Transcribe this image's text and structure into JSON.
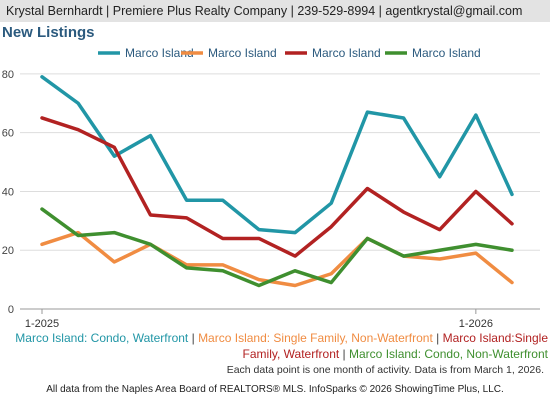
{
  "header": {
    "text": "Krystal Bernhardt | Premiere Plus Realty Company | 239-529-8994 | agentkrystal@gmail.com"
  },
  "footer": {
    "note": "Each data point is one month of activity. Data is from March 1, 2026.",
    "source": "All data from the Naples Area Board of REALTORS® MLS. InfoSparks © 2026 ShowingTime Plus, LLC."
  },
  "legend_desc": [
    {
      "text": "Marco Island: Condo, Waterfront",
      "color": "#2196a6"
    },
    {
      "text": "Marco Island: Single Family, Non-Waterfront",
      "color": "#f08c42"
    },
    {
      "text": "Marco Island:Single Family, Waterfront",
      "color": "#b22222"
    },
    {
      "text": "Marco Island: Condo, Non-Waterfront",
      "color": "#3f8f2f"
    }
  ],
  "chart_data": {
    "type": "line",
    "title": "New Listings",
    "x": [
      "2025-01",
      "2025-02",
      "2025-03",
      "2025-04",
      "2025-05",
      "2025-06",
      "2025-07",
      "2025-08",
      "2025-09",
      "2025-10",
      "2025-11",
      "2025-12",
      "2026-01",
      "2026-02"
    ],
    "x_tick_labels": [
      "1-2025",
      "1-2026"
    ],
    "y_ticks": [
      0,
      20,
      40,
      60,
      80
    ],
    "ylim": [
      0,
      82
    ],
    "grid": true,
    "legend_position": "top",
    "series": [
      {
        "name": "Marco Island",
        "color": "#2196a6",
        "values": [
          79,
          70,
          52,
          59,
          37,
          37,
          27,
          26,
          36,
          67,
          65,
          45,
          66,
          39
        ]
      },
      {
        "name": "Marco Island",
        "color": "#f08c42",
        "values": [
          22,
          26,
          16,
          22,
          15,
          15,
          10,
          8,
          12,
          24,
          18,
          17,
          19,
          9
        ]
      },
      {
        "name": "Marco Island",
        "color": "#b22222",
        "values": [
          65,
          61,
          55,
          32,
          31,
          24,
          24,
          18,
          28,
          41,
          33,
          27,
          40,
          29
        ]
      },
      {
        "name": "Marco Island",
        "color": "#3f8f2f",
        "values": [
          34,
          25,
          26,
          22,
          14,
          13,
          8,
          13,
          9,
          24,
          18,
          20,
          22,
          20
        ]
      }
    ]
  }
}
